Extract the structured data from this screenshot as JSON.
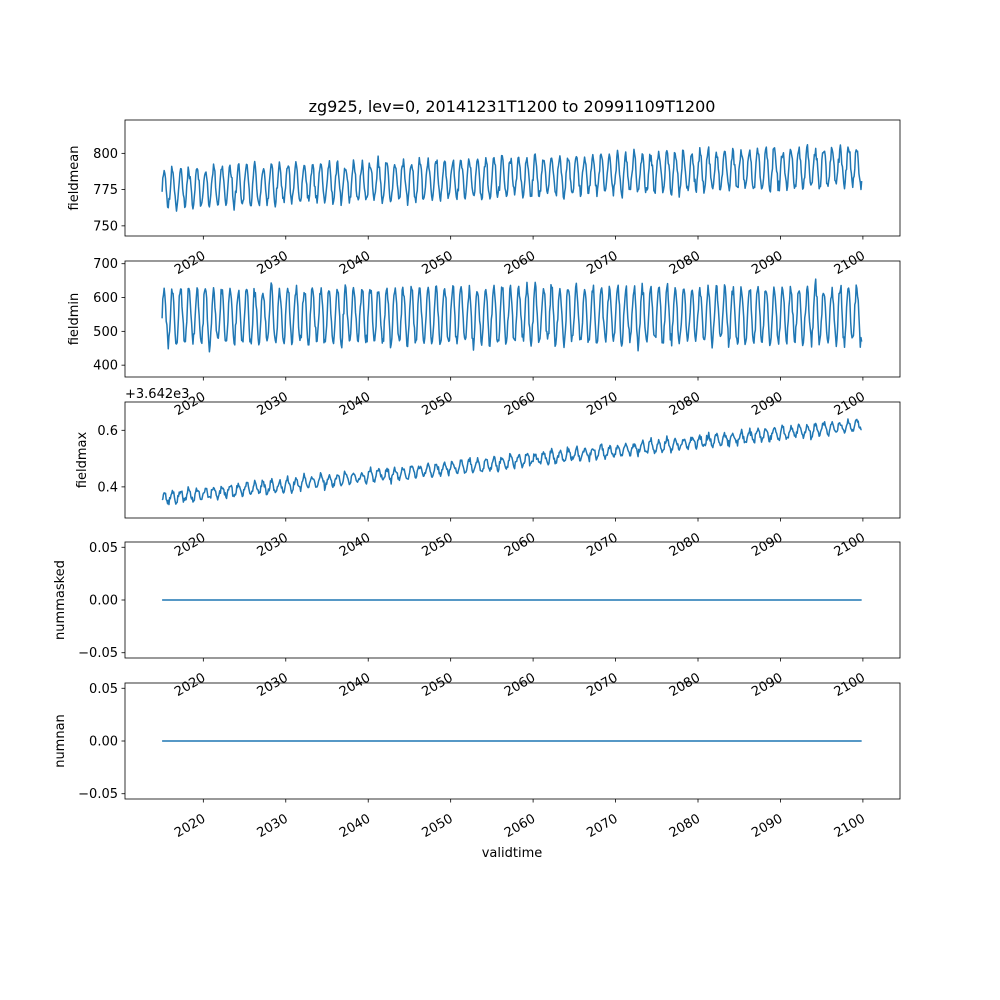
{
  "figure": {
    "title": "zg925, lev=0, 20141231T1200 to 20991109T1200",
    "xlabel": "validtime",
    "line_color": "#1f77b4"
  },
  "chart_data": [
    {
      "type": "line",
      "ylabel": "fieldmean",
      "xlim": [
        2010.5,
        2104.5
      ],
      "ylim": [
        743,
        823
      ],
      "yticks": [
        750,
        775,
        800
      ],
      "ytick_labels": [
        "750",
        "775",
        "800"
      ],
      "xticks": [
        2020,
        2030,
        2040,
        2050,
        2060,
        2070,
        2080,
        2090,
        2100
      ],
      "xtick_labels": [
        "2020",
        "2030",
        "2040",
        "2050",
        "2060",
        "2070",
        "2080",
        "2090",
        "2100"
      ],
      "x_start": 2015.0,
      "x_end": 2099.85,
      "trend": [
        776,
        791
      ],
      "amplitude": 13,
      "noise": 6,
      "period": 1.0,
      "seed": 11,
      "x": [
        2015,
        2025,
        2035,
        2045,
        2055,
        2065,
        2075,
        2085,
        2095,
        2099.8
      ],
      "y": [
        772,
        775,
        777,
        779,
        782,
        784,
        785,
        788,
        800,
        781
      ]
    },
    {
      "type": "line",
      "ylabel": "fieldmin",
      "xlim": [
        2010.5,
        2104.5
      ],
      "ylim": [
        365,
        708
      ],
      "yticks": [
        400,
        500,
        600,
        700
      ],
      "ytick_labels": [
        "400",
        "500",
        "600",
        "700"
      ],
      "xticks": [
        2020,
        2030,
        2040,
        2050,
        2060,
        2070,
        2080,
        2090,
        2100
      ],
      "xtick_labels": [
        "2020",
        "2030",
        "2040",
        "2050",
        "2060",
        "2070",
        "2080",
        "2090",
        "2100"
      ],
      "x_start": 2015.0,
      "x_end": 2099.85,
      "trend": [
        545,
        550
      ],
      "amplitude": 80,
      "noise": 30,
      "period": 1.0,
      "seed": 23,
      "x": [
        2015,
        2025,
        2035,
        2045,
        2055,
        2065,
        2075,
        2085,
        2095,
        2099.8
      ],
      "y": [
        630,
        540,
        560,
        545,
        580,
        550,
        560,
        545,
        600,
        610
      ]
    },
    {
      "type": "line",
      "ylabel": "fieldmax",
      "offset_label": "+3.642e3",
      "xlim": [
        2010.5,
        2104.5
      ],
      "ylim": [
        0.29,
        0.7
      ],
      "yticks": [
        0.4,
        0.6
      ],
      "ytick_labels": [
        "0.4",
        "0.6"
      ],
      "xticks": [
        2020,
        2030,
        2040,
        2050,
        2060,
        2070,
        2080,
        2090,
        2100
      ],
      "xtick_labels": [
        "2020",
        "2030",
        "2040",
        "2050",
        "2060",
        "2070",
        "2080",
        "2090",
        "2100"
      ],
      "x_start": 2015.0,
      "x_end": 2099.85,
      "trend": [
        0.36,
        0.62
      ],
      "amplitude": 0.02,
      "noise": 0.018,
      "period": 1.0,
      "seed": 37,
      "x": [
        2015,
        2025,
        2035,
        2045,
        2055,
        2065,
        2075,
        2085,
        2095,
        2099.8
      ],
      "y": [
        0.37,
        0.38,
        0.4,
        0.43,
        0.45,
        0.48,
        0.52,
        0.56,
        0.62,
        0.58
      ]
    },
    {
      "type": "line",
      "ylabel": "nummasked",
      "xlim": [
        2010.5,
        2104.5
      ],
      "ylim": [
        -0.055,
        0.055
      ],
      "yticks": [
        -0.05,
        0.0,
        0.05
      ],
      "ytick_labels": [
        "−0.05",
        "0.00",
        "0.05"
      ],
      "xticks": [
        2020,
        2030,
        2040,
        2050,
        2060,
        2070,
        2080,
        2090,
        2100
      ],
      "xtick_labels": [
        "2020",
        "2030",
        "2040",
        "2050",
        "2060",
        "2070",
        "2080",
        "2090",
        "2100"
      ],
      "x": [
        2015.0,
        2099.85
      ],
      "y": [
        0,
        0
      ]
    },
    {
      "type": "line",
      "ylabel": "numnan",
      "xlim": [
        2010.5,
        2104.5
      ],
      "ylim": [
        -0.055,
        0.055
      ],
      "yticks": [
        -0.05,
        0.0,
        0.05
      ],
      "ytick_labels": [
        "−0.05",
        "0.00",
        "0.05"
      ],
      "xticks": [
        2020,
        2030,
        2040,
        2050,
        2060,
        2070,
        2080,
        2090,
        2100
      ],
      "xtick_labels": [
        "2020",
        "2030",
        "2040",
        "2050",
        "2060",
        "2070",
        "2080",
        "2090",
        "2100"
      ],
      "x": [
        2015.0,
        2099.85
      ],
      "y": [
        0,
        0
      ]
    }
  ]
}
